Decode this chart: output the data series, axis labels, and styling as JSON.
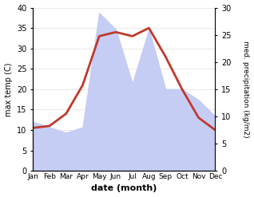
{
  "months": [
    "Jan",
    "Feb",
    "Mar",
    "Apr",
    "May",
    "Jun",
    "Jul",
    "Aug",
    "Sep",
    "Oct",
    "Nov",
    "Dec"
  ],
  "temperature": [
    10.5,
    11.0,
    14.0,
    21.0,
    33.0,
    34.0,
    33.0,
    35.0,
    28.0,
    20.0,
    13.0,
    10.0
  ],
  "precipitation": [
    9,
    8,
    7,
    8,
    29,
    26,
    16,
    26,
    15,
    15,
    13,
    10
  ],
  "temp_color": "#c0392b",
  "precip_fill_color": "#c5cdf5",
  "temp_ylim": [
    0,
    40
  ],
  "precip_ylim": [
    0,
    30
  ],
  "temp_ylabel": "max temp (C)",
  "precip_ylabel": "med. precipitation (kg/m2)",
  "xlabel": "date (month)",
  "temp_linewidth": 2.0,
  "background_color": "#ffffff"
}
